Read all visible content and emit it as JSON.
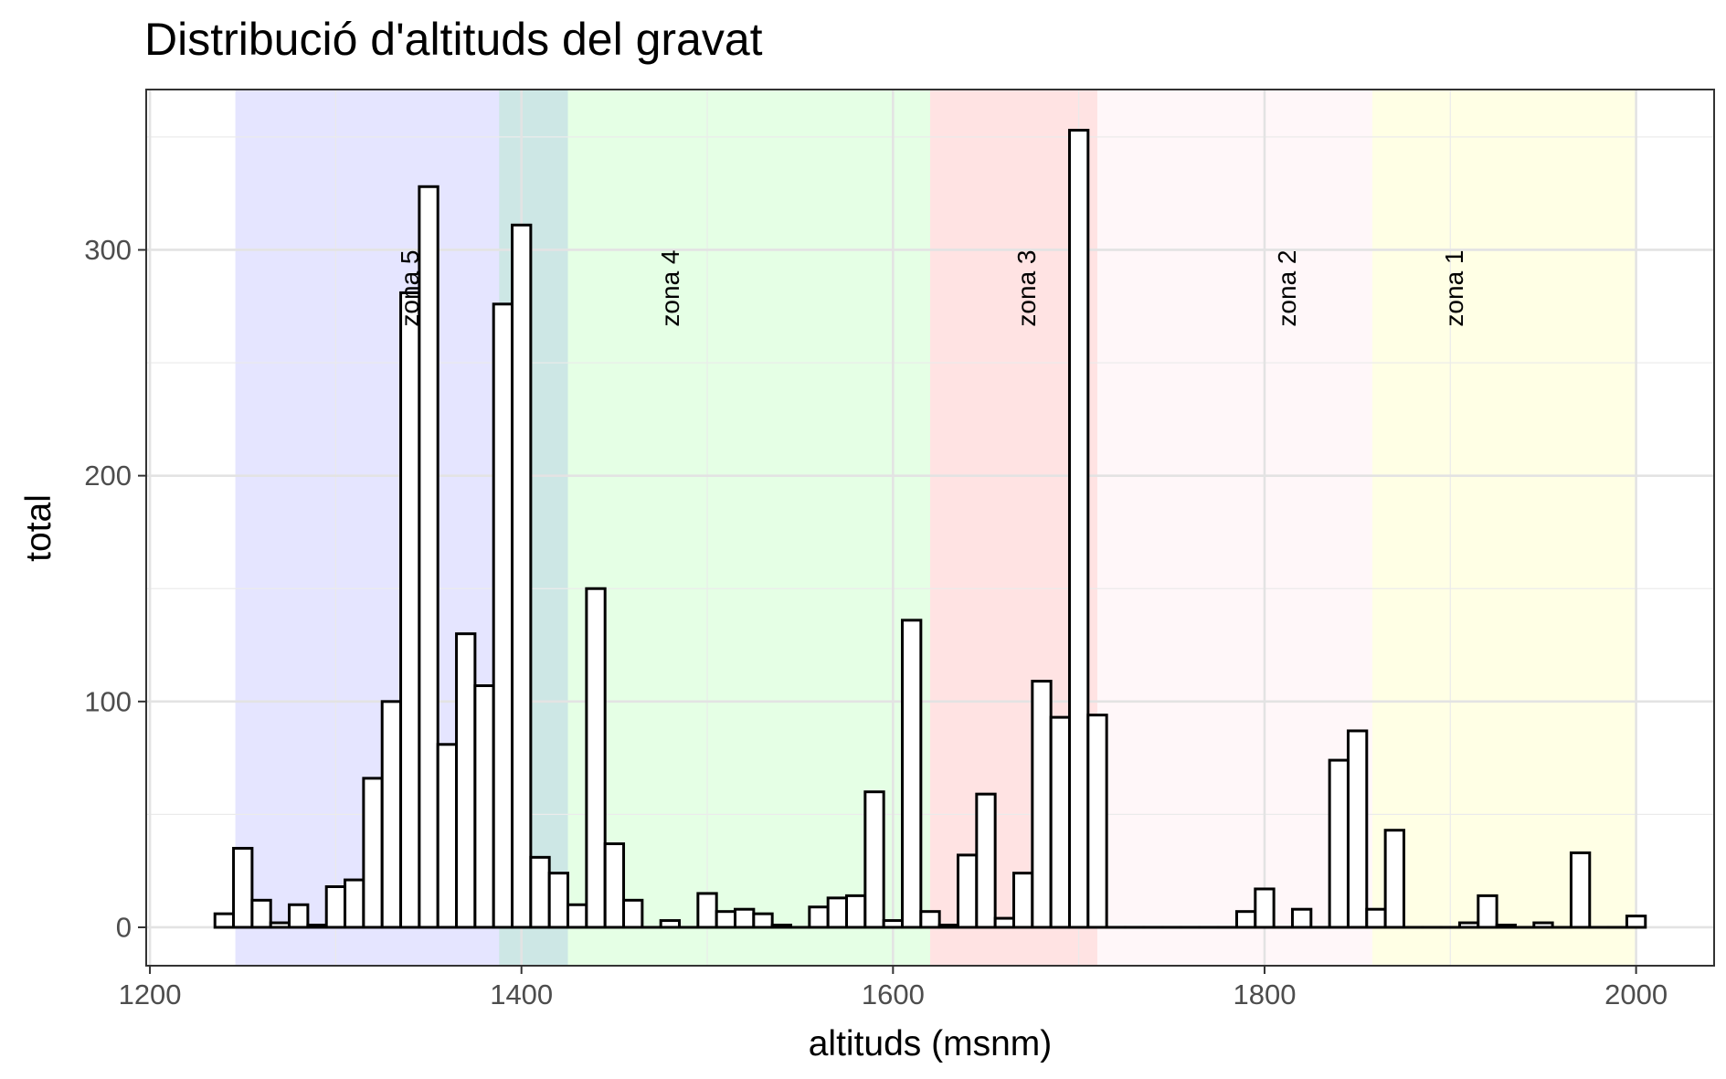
{
  "chart_data": {
    "type": "bar",
    "title": "Distribució d'altituds del gravat",
    "xlabel": "altituds (msnm)",
    "ylabel": "total",
    "xlim": [
      1198,
      2042
    ],
    "ylim": [
      -17,
      371
    ],
    "x_ticks": [
      1200,
      1400,
      1600,
      1800,
      2000
    ],
    "y_ticks": [
      0,
      100,
      200,
      300
    ],
    "grid": true,
    "bin_width": 10,
    "zones": [
      {
        "label": "zona 5",
        "from": 1246,
        "to": 1425,
        "color": "#0000ff",
        "alpha": 0.1,
        "label_x": 1340
      },
      {
        "label": "zona 4",
        "from": 1388,
        "to": 1620,
        "color": "#00ff00",
        "alpha": 0.1,
        "label_x": 1480
      },
      {
        "label": "zona 3",
        "from": 1620,
        "to": 1710,
        "color": "#ff0000",
        "alpha": 0.11,
        "label_x": 1672
      },
      {
        "label": "zona 2",
        "from": 1710,
        "to": 1858,
        "color": "#ffc0cb",
        "alpha": 0.12,
        "label_x": 1812
      },
      {
        "label": "zona 1",
        "from": 1858,
        "to": 2000,
        "color": "#ffff00",
        "alpha": 0.1,
        "label_x": 1902
      }
    ],
    "bins": [
      {
        "x": 1240,
        "y": 6
      },
      {
        "x": 1250,
        "y": 35
      },
      {
        "x": 1260,
        "y": 12
      },
      {
        "x": 1270,
        "y": 2
      },
      {
        "x": 1280,
        "y": 10
      },
      {
        "x": 1290,
        "y": 1
      },
      {
        "x": 1300,
        "y": 18
      },
      {
        "x": 1310,
        "y": 21
      },
      {
        "x": 1320,
        "y": 66
      },
      {
        "x": 1330,
        "y": 100
      },
      {
        "x": 1340,
        "y": 281
      },
      {
        "x": 1350,
        "y": 328
      },
      {
        "x": 1360,
        "y": 81
      },
      {
        "x": 1370,
        "y": 130
      },
      {
        "x": 1380,
        "y": 107
      },
      {
        "x": 1390,
        "y": 276
      },
      {
        "x": 1400,
        "y": 311
      },
      {
        "x": 1410,
        "y": 31
      },
      {
        "x": 1420,
        "y": 24
      },
      {
        "x": 1430,
        "y": 10
      },
      {
        "x": 1440,
        "y": 150
      },
      {
        "x": 1450,
        "y": 37
      },
      {
        "x": 1460,
        "y": 12
      },
      {
        "x": 1470,
        "y": 0
      },
      {
        "x": 1480,
        "y": 3
      },
      {
        "x": 1490,
        "y": 0
      },
      {
        "x": 1500,
        "y": 15
      },
      {
        "x": 1510,
        "y": 7
      },
      {
        "x": 1520,
        "y": 8
      },
      {
        "x": 1530,
        "y": 6
      },
      {
        "x": 1540,
        "y": 1
      },
      {
        "x": 1550,
        "y": 0
      },
      {
        "x": 1560,
        "y": 9
      },
      {
        "x": 1570,
        "y": 13
      },
      {
        "x": 1580,
        "y": 14
      },
      {
        "x": 1590,
        "y": 60
      },
      {
        "x": 1600,
        "y": 3
      },
      {
        "x": 1610,
        "y": 136
      },
      {
        "x": 1620,
        "y": 7
      },
      {
        "x": 1630,
        "y": 1
      },
      {
        "x": 1640,
        "y": 32
      },
      {
        "x": 1650,
        "y": 59
      },
      {
        "x": 1660,
        "y": 4
      },
      {
        "x": 1670,
        "y": 24
      },
      {
        "x": 1680,
        "y": 109
      },
      {
        "x": 1690,
        "y": 93
      },
      {
        "x": 1700,
        "y": 353
      },
      {
        "x": 1710,
        "y": 94
      },
      {
        "x": 1720,
        "y": 0
      },
      {
        "x": 1730,
        "y": 0
      },
      {
        "x": 1740,
        "y": 0
      },
      {
        "x": 1750,
        "y": 0
      },
      {
        "x": 1760,
        "y": 0
      },
      {
        "x": 1770,
        "y": 0
      },
      {
        "x": 1780,
        "y": 0
      },
      {
        "x": 1790,
        "y": 7
      },
      {
        "x": 1800,
        "y": 17
      },
      {
        "x": 1810,
        "y": 0
      },
      {
        "x": 1820,
        "y": 8
      },
      {
        "x": 1830,
        "y": 0
      },
      {
        "x": 1840,
        "y": 74
      },
      {
        "x": 1850,
        "y": 87
      },
      {
        "x": 1860,
        "y": 8
      },
      {
        "x": 1870,
        "y": 43
      },
      {
        "x": 1880,
        "y": 0
      },
      {
        "x": 1890,
        "y": 0
      },
      {
        "x": 1900,
        "y": 0
      },
      {
        "x": 1910,
        "y": 2
      },
      {
        "x": 1920,
        "y": 14
      },
      {
        "x": 1930,
        "y": 1
      },
      {
        "x": 1940,
        "y": 0
      },
      {
        "x": 1950,
        "y": 2
      },
      {
        "x": 1960,
        "y": 0
      },
      {
        "x": 1970,
        "y": 33
      },
      {
        "x": 1980,
        "y": 0
      },
      {
        "x": 1990,
        "y": 0
      },
      {
        "x": 2000,
        "y": 5
      }
    ]
  }
}
